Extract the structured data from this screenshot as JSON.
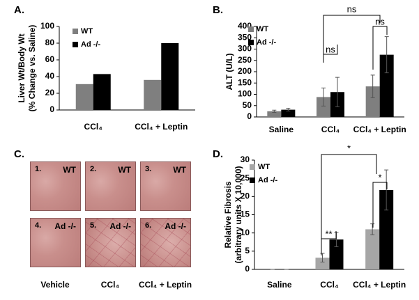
{
  "chart_data": [
    {
      "type": "bar",
      "label": "A.",
      "ylabel": [
        "Liver Wt/Body Wt",
        "(% Change vs. Saline)"
      ],
      "categories": [
        "CCl₄",
        "CCl₄ + Leptin"
      ],
      "series": [
        {
          "name": "WT",
          "color": "#7f7f7f",
          "values": [
            31,
            36
          ]
        },
        {
          "name": "Ad -/-",
          "color": "#000000",
          "values": [
            43,
            80
          ]
        }
      ],
      "ylim": [
        0,
        100
      ],
      "yticks": [
        0,
        20,
        40,
        60,
        80,
        100
      ]
    },
    {
      "type": "bar",
      "label": "B.",
      "ylabel": [
        "ALT (U/L)"
      ],
      "categories": [
        "Saline",
        "CCl₄",
        "CCl₄ + Leptin"
      ],
      "series": [
        {
          "name": "WT",
          "color": "#7f7f7f",
          "values": [
            25,
            88,
            135
          ],
          "errors": [
            5,
            40,
            50
          ]
        },
        {
          "name": "Ad -/-",
          "color": "#000000",
          "values": [
            32,
            110,
            275
          ],
          "errors": [
            6,
            65,
            80
          ]
        }
      ],
      "ylim": [
        0,
        400
      ],
      "yticks": [
        0,
        50,
        100,
        150,
        200,
        250,
        300,
        350,
        400
      ],
      "annotations": [
        "ns",
        "ns",
        "ns"
      ]
    },
    {
      "type": "bar",
      "label": "D.",
      "ylabel": [
        "Relative Fibrosis",
        "(arbitrary units X 10,000)"
      ],
      "categories": [
        "Saline",
        "CCl₄",
        "CCl₄ + Leptin"
      ],
      "series": [
        {
          "name": "WT",
          "color": "#a6a6a6",
          "values": [
            0,
            3.2,
            11
          ],
          "errors": [
            0,
            1.2,
            1.5
          ]
        },
        {
          "name": "Ad -/-",
          "color": "#000000",
          "values": [
            0,
            8.2,
            21.8
          ],
          "errors": [
            0,
            2,
            5.5
          ]
        }
      ],
      "ylim": [
        0,
        30
      ],
      "yticks": [
        0,
        5,
        10,
        15,
        20,
        25,
        30
      ],
      "annotations": [
        "*",
        "**",
        "*"
      ]
    }
  ],
  "images": {
    "label": "C.",
    "tiles": [
      {
        "number": "1.",
        "label": "WT"
      },
      {
        "number": "2.",
        "label": "WT"
      },
      {
        "number": "3.",
        "label": "WT"
      },
      {
        "number": "4.",
        "label": "Ad -/-"
      },
      {
        "number": "5.",
        "label": "Ad -/-"
      },
      {
        "number": "6.",
        "label": "Ad -/-"
      }
    ],
    "columns": [
      "Vehicle",
      "CCl₄",
      "CCl₄ + Leptin"
    ]
  }
}
